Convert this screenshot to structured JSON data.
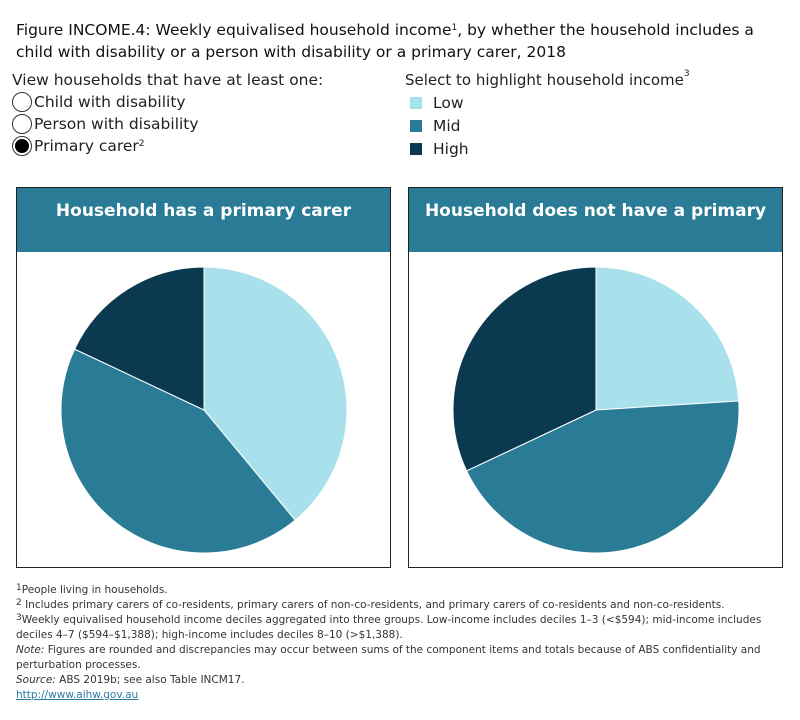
{
  "title": {
    "text_a": "Figure INCOME.4: Weekly equivalised household income",
    "sup": "1",
    "text_b": ", by whether the household includes a child with disability or a person with disability or a primary carer, 2018"
  },
  "filter": {
    "heading": "View households that have at least one:",
    "options": [
      {
        "label": "Child with disability",
        "selected": false
      },
      {
        "label": "Person with disability",
        "selected": false
      },
      {
        "label": "Primary carer",
        "sup": "2",
        "selected": true
      }
    ]
  },
  "legend": {
    "heading": "Select to highlight household income",
    "sup": "3",
    "items": [
      {
        "label": "Low",
        "color": "#a8e0eb"
      },
      {
        "label": "Mid",
        "color": "#297b96"
      },
      {
        "label": "High",
        "color": "#0b3a50"
      }
    ]
  },
  "chart_data": [
    {
      "type": "pie",
      "title": "Household has a primary carer",
      "categories": [
        "Low",
        "Mid",
        "High"
      ],
      "values": [
        39,
        43,
        18
      ],
      "colors": [
        "#a8e0eb",
        "#297b96",
        "#0b3a50"
      ]
    },
    {
      "type": "pie",
      "title": "Household does not have a primary carer",
      "categories": [
        "Low",
        "Mid",
        "High"
      ],
      "values": [
        24,
        44,
        32
      ],
      "colors": [
        "#a8e0eb",
        "#297b96",
        "#0b3a50"
      ]
    }
  ],
  "footnotes": {
    "f1_sup": "1",
    "f1": "People living in households.",
    "f2_sup": "2",
    "f2": " Includes primary carers of co-residents, primary carers of non-co-residents, and primary carers of co-residents and non-co-residents.",
    "f3_sup": "3",
    "f3": "Weekly equivalised household income deciles aggregated into three groups. Low-income includes deciles 1–3 (<$594); mid-income includes deciles 4–7 ($594–$1,388); high-income includes deciles 8–10 (>$1,388).",
    "note_label": "Note:",
    "note": " Figures are rounded and discrepancies may occur between sums of the component items and totals because of ABS confidentiality and perturbation processes.",
    "source_label": "Source:",
    "source": " ABS 2019b; see also Table INCM17.",
    "link": "http://www.aihw.gov.au"
  }
}
